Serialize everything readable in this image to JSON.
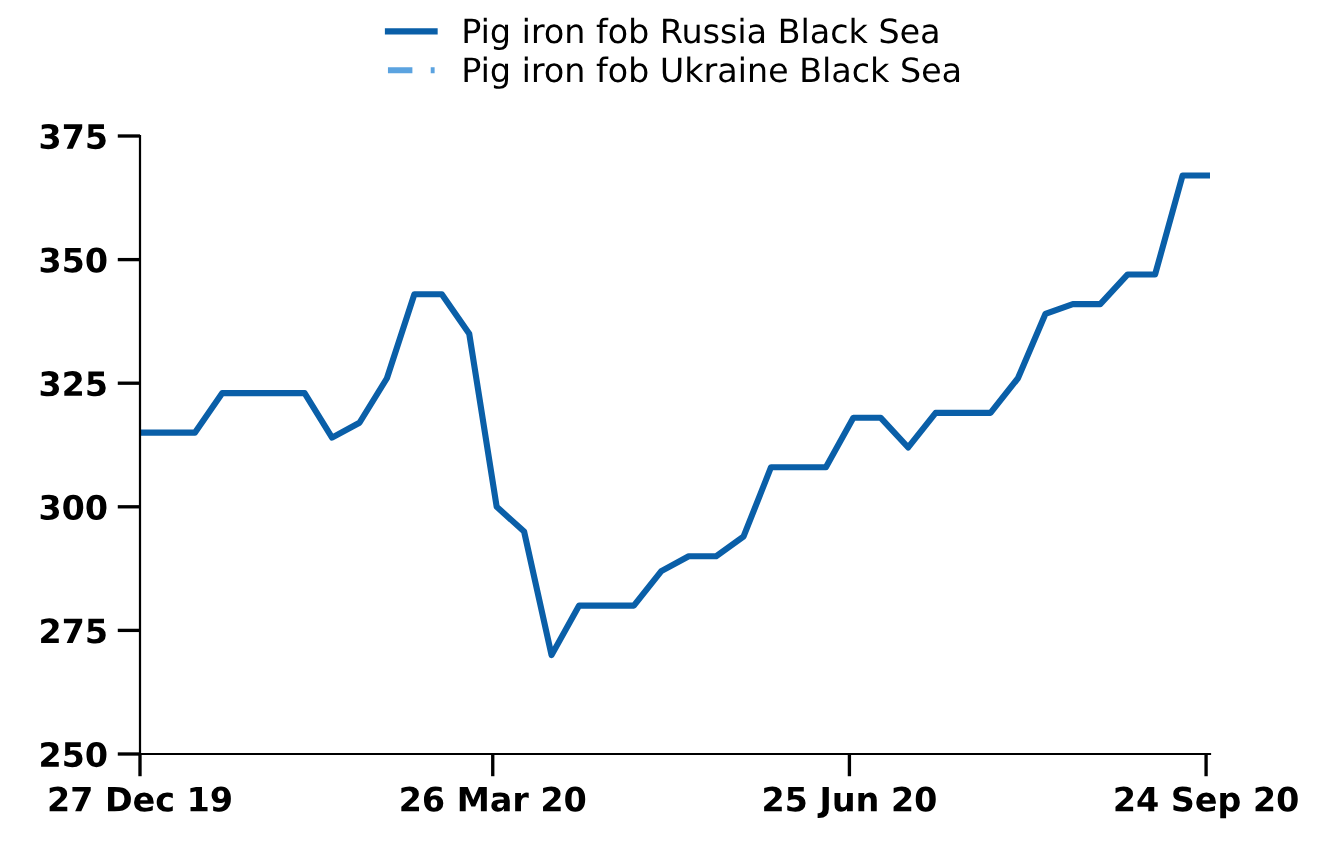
{
  "chart_data": {
    "type": "line",
    "x": [
      "2019-12-27",
      "2020-01-03",
      "2020-01-10",
      "2020-01-17",
      "2020-01-24",
      "2020-01-31",
      "2020-02-07",
      "2020-02-14",
      "2020-02-21",
      "2020-02-28",
      "2020-03-06",
      "2020-03-13",
      "2020-03-20",
      "2020-03-27",
      "2020-04-03",
      "2020-04-10",
      "2020-04-17",
      "2020-04-24",
      "2020-05-01",
      "2020-05-08",
      "2020-05-15",
      "2020-05-22",
      "2020-05-29",
      "2020-06-05",
      "2020-06-12",
      "2020-06-19",
      "2020-06-26",
      "2020-07-03",
      "2020-07-10",
      "2020-07-17",
      "2020-07-24",
      "2020-07-31",
      "2020-08-07",
      "2020-08-14",
      "2020-08-21",
      "2020-08-28",
      "2020-09-04",
      "2020-09-11",
      "2020-09-18",
      "2020-09-25"
    ],
    "series": [
      {
        "name": "Pig iron fob Russia Black Sea",
        "color": "#0a5fa8",
        "line_style": "solid",
        "values": [
          315,
          315,
          315,
          323,
          323,
          323,
          323,
          314,
          317,
          326,
          343,
          343,
          335,
          300,
          295,
          270,
          280,
          280,
          280,
          287,
          290,
          290,
          294,
          308,
          308,
          308,
          318,
          318,
          312,
          319,
          319,
          319,
          326,
          339,
          341,
          341,
          347,
          347,
          367,
          367
        ]
      },
      {
        "name": "Pig iron fob Ukraine Black Sea",
        "color": "#5ba3e0",
        "line_style": "dashed",
        "values": [
          null,
          null,
          null,
          null,
          null,
          null,
          null,
          null,
          null,
          null,
          null,
          null,
          null,
          null,
          null,
          null,
          null,
          null,
          null,
          null,
          null,
          null,
          null,
          null,
          null,
          null,
          null,
          null,
          null,
          null,
          null,
          null,
          null,
          null,
          null,
          null,
          null,
          null,
          null,
          null
        ]
      }
    ],
    "xlim": [
      "2019-12-27",
      "2020-09-25"
    ],
    "xticks": [
      {
        "value": "2019-12-27",
        "label": "27 Dec 19"
      },
      {
        "value": "2020-03-26",
        "label": "26 Mar 20"
      },
      {
        "value": "2020-06-25",
        "label": "25 Jun 20"
      },
      {
        "value": "2020-09-24",
        "label": "24 Sep 20"
      }
    ],
    "ylim": [
      250,
      375
    ],
    "yticks": [
      250,
      275,
      300,
      325,
      350,
      375
    ],
    "grid": false,
    "legend": "top",
    "marker": "none"
  }
}
